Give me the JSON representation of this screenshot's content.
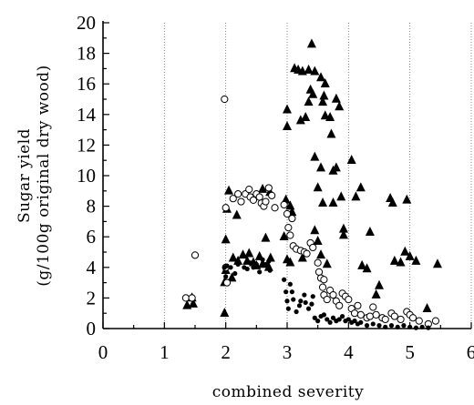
{
  "chart_data": {
    "type": "scatter",
    "title": "",
    "xlabel": "combined severity",
    "ylabel": "Sugar yield",
    "ylabel_sub": "(g/100g original dry wood)",
    "xlim": [
      0,
      6
    ],
    "ylim": [
      0,
      20
    ],
    "xticks": [
      0,
      1,
      2,
      3,
      4,
      5,
      6
    ],
    "yticks": [
      0,
      2,
      4,
      6,
      8,
      10,
      12,
      14,
      16,
      18,
      20
    ],
    "grid": "vertical dotted lines",
    "legend": "none",
    "series": [
      {
        "marker": "triangle-filled",
        "points": [
          [
            1.37,
            1.5
          ],
          [
            1.45,
            2.0
          ],
          [
            1.47,
            1.6
          ],
          [
            1.98,
            1.0
          ],
          [
            1.98,
            3.0
          ],
          [
            2.0,
            3.8
          ],
          [
            2.0,
            5.8
          ],
          [
            2.02,
            7.8
          ],
          [
            2.05,
            9.0
          ],
          [
            2.12,
            4.6
          ],
          [
            2.1,
            3.3
          ],
          [
            2.2,
            4.4
          ],
          [
            2.28,
            4.8
          ],
          [
            2.35,
            4.4
          ],
          [
            2.38,
            4.9
          ],
          [
            2.45,
            4.3
          ],
          [
            2.5,
            4.1
          ],
          [
            2.55,
            4.7
          ],
          [
            2.6,
            4.2
          ],
          [
            2.65,
            5.9
          ],
          [
            2.7,
            4.0
          ],
          [
            2.73,
            4.6
          ],
          [
            2.18,
            7.4
          ],
          [
            2.6,
            9.1
          ],
          [
            2.72,
            8.9
          ],
          [
            2.95,
            6.0
          ],
          [
            2.98,
            8.4
          ],
          [
            3.0,
            13.2
          ],
          [
            3.0,
            14.3
          ],
          [
            3.05,
            8.0
          ],
          [
            3.08,
            7.6
          ],
          [
            3.0,
            4.5
          ],
          [
            3.05,
            4.3
          ],
          [
            3.12,
            17.0
          ],
          [
            3.18,
            16.9
          ],
          [
            3.25,
            16.8
          ],
          [
            3.22,
            13.6
          ],
          [
            3.3,
            13.8
          ],
          [
            3.35,
            16.9
          ],
          [
            3.38,
            15.6
          ],
          [
            3.4,
            18.6
          ],
          [
            3.35,
            14.8
          ],
          [
            3.42,
            15.3
          ],
          [
            3.45,
            16.8
          ],
          [
            3.45,
            11.2
          ],
          [
            3.55,
            16.4
          ],
          [
            3.6,
            15.2
          ],
          [
            3.62,
            16.0
          ],
          [
            3.58,
            14.8
          ],
          [
            3.62,
            13.9
          ],
          [
            3.55,
            10.5
          ],
          [
            3.58,
            8.2
          ],
          [
            3.7,
            13.8
          ],
          [
            3.72,
            12.7
          ],
          [
            3.75,
            10.3
          ],
          [
            3.8,
            15.0
          ],
          [
            3.85,
            14.5
          ],
          [
            3.25,
            4.6
          ],
          [
            3.45,
            6.4
          ],
          [
            3.5,
            9.2
          ],
          [
            3.5,
            5.7
          ],
          [
            3.55,
            4.8
          ],
          [
            3.65,
            4.2
          ],
          [
            3.75,
            8.2
          ],
          [
            3.8,
            10.5
          ],
          [
            3.88,
            8.6
          ],
          [
            3.92,
            6.5
          ],
          [
            3.92,
            6.1
          ],
          [
            4.05,
            11.0
          ],
          [
            4.12,
            8.6
          ],
          [
            4.2,
            9.2
          ],
          [
            4.22,
            4.1
          ],
          [
            4.3,
            3.9
          ],
          [
            4.35,
            6.3
          ],
          [
            4.45,
            2.2
          ],
          [
            4.5,
            2.8
          ],
          [
            4.68,
            8.5
          ],
          [
            4.72,
            8.2
          ],
          [
            4.75,
            4.4
          ],
          [
            4.85,
            4.3
          ],
          [
            4.92,
            5.0
          ],
          [
            4.95,
            8.4
          ],
          [
            5.0,
            4.7
          ],
          [
            5.1,
            4.4
          ],
          [
            5.28,
            1.3
          ],
          [
            5.45,
            4.2
          ]
        ]
      },
      {
        "marker": "circle-open",
        "points": [
          [
            1.35,
            2.0
          ],
          [
            1.45,
            2.0
          ],
          [
            1.5,
            4.8
          ],
          [
            1.98,
            15.0
          ],
          [
            2.0,
            7.9
          ],
          [
            2.0,
            4.0
          ],
          [
            2.02,
            3.0
          ],
          [
            2.12,
            8.5
          ],
          [
            2.2,
            8.8
          ],
          [
            2.25,
            8.3
          ],
          [
            2.32,
            8.8
          ],
          [
            2.38,
            9.1
          ],
          [
            2.4,
            8.6
          ],
          [
            2.45,
            8.4
          ],
          [
            2.5,
            8.8
          ],
          [
            2.55,
            8.6
          ],
          [
            2.58,
            8.2
          ],
          [
            2.62,
            8.0
          ],
          [
            2.65,
            8.3
          ],
          [
            2.7,
            9.2
          ],
          [
            2.75,
            8.7
          ],
          [
            2.8,
            7.9
          ],
          [
            2.95,
            8.1
          ],
          [
            3.0,
            7.5
          ],
          [
            3.02,
            6.6
          ],
          [
            3.05,
            6.1
          ],
          [
            3.08,
            7.2
          ],
          [
            3.1,
            5.4
          ],
          [
            3.15,
            5.2
          ],
          [
            3.22,
            5.1
          ],
          [
            3.28,
            5.0
          ],
          [
            3.32,
            4.9
          ],
          [
            3.38,
            5.6
          ],
          [
            3.42,
            5.3
          ],
          [
            3.5,
            4.3
          ],
          [
            3.52,
            3.7
          ],
          [
            3.55,
            3.3
          ],
          [
            3.6,
            3.2
          ],
          [
            3.58,
            2.7
          ],
          [
            3.6,
            2.2
          ],
          [
            3.65,
            1.9
          ],
          [
            3.7,
            2.5
          ],
          [
            3.75,
            2.2
          ],
          [
            3.8,
            1.8
          ],
          [
            3.85,
            1.5
          ],
          [
            3.9,
            2.3
          ],
          [
            3.95,
            2.1
          ],
          [
            4.0,
            1.9
          ],
          [
            4.05,
            1.3
          ],
          [
            4.1,
            1.0
          ],
          [
            4.15,
            1.5
          ],
          [
            4.2,
            0.9
          ],
          [
            4.3,
            0.7
          ],
          [
            4.35,
            0.8
          ],
          [
            4.4,
            1.4
          ],
          [
            4.45,
            0.9
          ],
          [
            4.55,
            0.7
          ],
          [
            4.6,
            0.6
          ],
          [
            4.7,
            1.0
          ],
          [
            4.75,
            0.8
          ],
          [
            4.85,
            0.6
          ],
          [
            4.95,
            1.1
          ],
          [
            5.0,
            0.9
          ],
          [
            5.05,
            0.7
          ],
          [
            5.15,
            0.5
          ],
          [
            5.3,
            0.3
          ],
          [
            5.42,
            0.5
          ]
        ]
      },
      {
        "marker": "circle-filled",
        "points": [
          [
            1.98,
            4.0
          ],
          [
            2.0,
            3.4
          ],
          [
            2.02,
            4.1
          ],
          [
            2.08,
            4.0
          ],
          [
            2.15,
            3.6
          ],
          [
            2.2,
            4.2
          ],
          [
            2.3,
            4.0
          ],
          [
            2.35,
            3.9
          ],
          [
            2.4,
            4.3
          ],
          [
            2.45,
            4.0
          ],
          [
            2.5,
            4.2
          ],
          [
            2.55,
            3.7
          ],
          [
            2.6,
            4.5
          ],
          [
            2.65,
            4.2
          ],
          [
            2.7,
            4.4
          ],
          [
            2.72,
            3.8
          ],
          [
            2.95,
            3.2
          ],
          [
            2.98,
            2.4
          ],
          [
            3.0,
            1.8
          ],
          [
            3.02,
            1.3
          ],
          [
            3.05,
            2.9
          ],
          [
            3.08,
            2.4
          ],
          [
            3.1,
            1.9
          ],
          [
            3.15,
            1.1
          ],
          [
            3.2,
            1.5
          ],
          [
            3.22,
            1.8
          ],
          [
            3.28,
            2.2
          ],
          [
            3.3,
            1.7
          ],
          [
            3.35,
            1.3
          ],
          [
            3.4,
            1.6
          ],
          [
            3.42,
            2.1
          ],
          [
            3.45,
            0.7
          ],
          [
            3.5,
            0.5
          ],
          [
            3.55,
            0.8
          ],
          [
            3.6,
            0.9
          ],
          [
            3.65,
            0.6
          ],
          [
            3.7,
            0.4
          ],
          [
            3.75,
            0.7
          ],
          [
            3.8,
            0.5
          ],
          [
            3.85,
            0.6
          ],
          [
            3.9,
            0.8
          ],
          [
            3.95,
            0.5
          ],
          [
            4.0,
            0.6
          ],
          [
            4.05,
            0.4
          ],
          [
            4.1,
            0.5
          ],
          [
            4.15,
            0.3
          ],
          [
            4.2,
            0.4
          ],
          [
            4.3,
            0.2
          ],
          [
            4.4,
            0.3
          ],
          [
            4.5,
            0.2
          ],
          [
            4.6,
            0.1
          ],
          [
            4.7,
            0.2
          ],
          [
            4.8,
            0.1
          ],
          [
            4.9,
            0.2
          ],
          [
            5.0,
            0.1
          ],
          [
            5.1,
            0.05
          ],
          [
            5.2,
            0.1
          ],
          [
            5.3,
            0.05
          ]
        ]
      }
    ]
  }
}
